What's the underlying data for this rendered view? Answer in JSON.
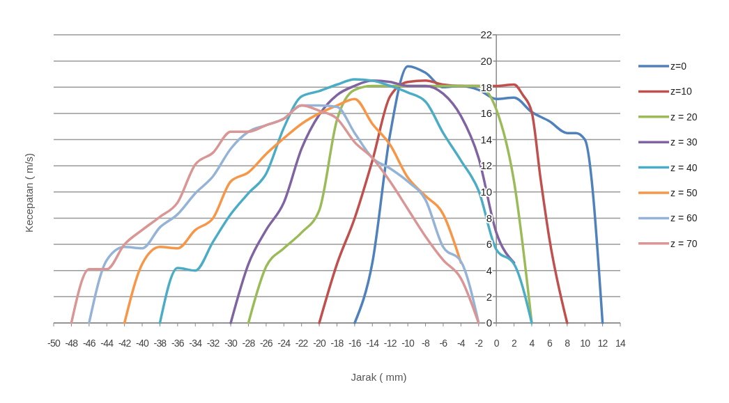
{
  "chart_data": {
    "type": "line",
    "xlabel": "Jarak ( mm)",
    "ylabel": "Kecepatan ( m/s)",
    "xlim": [
      -50,
      14
    ],
    "xticks": [
      -50,
      -48,
      -46,
      -44,
      -42,
      -40,
      -38,
      -36,
      -34,
      -32,
      -30,
      -28,
      -26,
      -24,
      -22,
      -20,
      -18,
      -16,
      -14,
      -12,
      -10,
      -8,
      -6,
      -4,
      -2,
      0,
      2,
      4,
      6,
      8,
      10,
      12,
      14
    ],
    "ylim": [
      0,
      22
    ],
    "yticks": [
      0,
      2,
      4,
      6,
      8,
      10,
      12,
      14,
      16,
      18,
      20,
      22
    ],
    "grid": "y",
    "legend": "right",
    "marker": "none",
    "line_style": "solid",
    "series": [
      {
        "name": "z=0",
        "color": "#4f81bd",
        "x": [
          -16,
          -14,
          -12,
          -10,
          -8,
          -6,
          -4,
          -2,
          0,
          2,
          4,
          6,
          8,
          9,
          10,
          12
        ],
        "values": [
          0,
          4.6,
          14.4,
          19.6,
          19.1,
          18.0,
          18.1,
          17.8,
          17.1,
          17.2,
          16.1,
          15.4,
          14.5,
          14.5,
          14.0,
          0
        ]
      },
      {
        "name": "z=10",
        "color": "#c0504d",
        "x": [
          -20,
          -18,
          -16,
          -14,
          -12,
          -10,
          -8,
          -6,
          -4,
          -2,
          0,
          2,
          3,
          4,
          5,
          6,
          8
        ],
        "values": [
          0,
          4.5,
          8.0,
          12.4,
          17.3,
          18.4,
          18.5,
          18.2,
          18.1,
          18.1,
          18.1,
          18.2,
          17.4,
          16.1,
          11.0,
          6.4,
          0
        ]
      },
      {
        "name": "z = 20",
        "color": "#9bbb59",
        "x": [
          -28,
          -26,
          -24,
          -22,
          -20,
          -18,
          -16,
          -14,
          -12,
          -10,
          -8,
          -6,
          -4,
          -2,
          0,
          2,
          4
        ],
        "values": [
          0,
          4.3,
          5.7,
          6.9,
          8.6,
          15.5,
          17.8,
          18.1,
          18.1,
          18.1,
          18.1,
          18.1,
          18.1,
          18.1,
          16.3,
          10.8,
          0
        ]
      },
      {
        "name": "z = 30",
        "color": "#8064a2",
        "x": [
          -30,
          -28,
          -26,
          -24,
          -22,
          -20,
          -18,
          -16,
          -14,
          -12,
          -10,
          -8,
          -6,
          -4,
          -2,
          0,
          2
        ],
        "values": [
          0,
          4.5,
          7.1,
          9.2,
          13.3,
          15.9,
          17.4,
          18.1,
          18.5,
          18.4,
          18.1,
          18.1,
          17.5,
          15.8,
          12.6,
          6.9,
          4.6
        ]
      },
      {
        "name": "z = 40",
        "color": "#4bacc6",
        "x": [
          -38,
          -36,
          -34,
          -32,
          -30,
          -28,
          -26,
          -24,
          -22,
          -20,
          -18,
          -16,
          -14,
          -12,
          -10,
          -8,
          -6,
          -4,
          -2,
          0,
          2,
          4
        ],
        "values": [
          0,
          4.2,
          4.0,
          6.2,
          8.3,
          9.9,
          11.4,
          14.9,
          17.3,
          17.7,
          18.2,
          18.6,
          18.5,
          18.1,
          17.6,
          16.9,
          14.5,
          12.4,
          10.1,
          5.6,
          4.5,
          0
        ]
      },
      {
        "name": "z = 50",
        "color": "#f79646",
        "x": [
          -42,
          -40,
          -38,
          -36,
          -34,
          -32,
          -30,
          -28,
          -26,
          -24,
          -22,
          -20,
          -18,
          -16,
          -14,
          -12,
          -10,
          -8,
          -6,
          -4
        ],
        "values": [
          0,
          4.5,
          5.8,
          5.7,
          7.1,
          8.0,
          10.8,
          11.5,
          12.9,
          14.1,
          15.2,
          16.0,
          16.6,
          17.1,
          15.2,
          13.6,
          11.1,
          9.7,
          8.3,
          4.6
        ]
      },
      {
        "name": "z = 60",
        "color": "#95b3d7",
        "x": [
          -46,
          -44,
          -42,
          -40,
          -38,
          -36,
          -34,
          -32,
          -30,
          -28,
          -26,
          -24,
          -22,
          -20,
          -18,
          -16,
          -14,
          -12,
          -10,
          -8,
          -6,
          -4,
          -2
        ],
        "values": [
          0,
          4.8,
          5.8,
          5.7,
          7.3,
          8.3,
          9.9,
          11.2,
          13.3,
          14.6,
          15.1,
          15.6,
          16.6,
          16.6,
          16.5,
          14.5,
          12.6,
          11.8,
          10.8,
          9.4,
          5.8,
          4.7,
          0
        ]
      },
      {
        "name": "z = 70",
        "color": "#d99694",
        "x": [
          -48,
          -46,
          -44,
          -42,
          -40,
          -38,
          -36,
          -34,
          -32,
          -30,
          -28,
          -26,
          -24,
          -22,
          -20,
          -18,
          -16,
          -14,
          -12,
          -10,
          -8,
          -6,
          -4,
          -2
        ],
        "values": [
          0,
          4.1,
          4.1,
          6.0,
          7.1,
          8.1,
          9.2,
          12.1,
          13.0,
          14.6,
          14.6,
          15.1,
          15.6,
          16.6,
          16.2,
          15.6,
          13.8,
          12.6,
          10.8,
          8.7,
          6.6,
          4.8,
          3.4,
          0
        ]
      }
    ]
  }
}
